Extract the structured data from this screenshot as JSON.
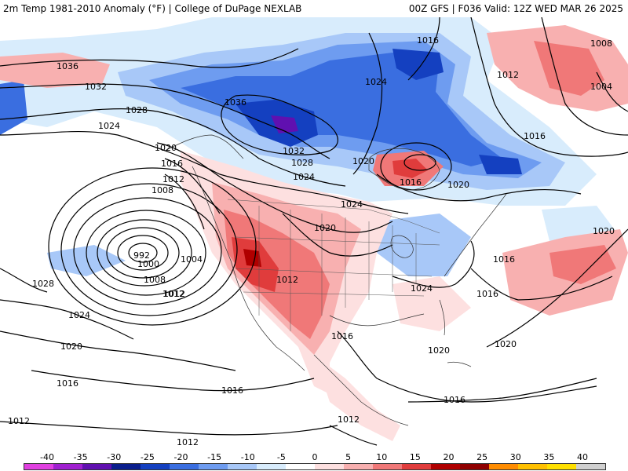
{
  "header": {
    "left_title": "2m Temp 1981-2010 Anomaly (°F) | College of DuPage NEXLAB",
    "right_title": "00Z GFS | F036 Valid: 12Z WED MAR 26 2025"
  },
  "legend": {
    "ticks": [
      "-40",
      "-35",
      "-30",
      "-25",
      "-20",
      "-15",
      "-10",
      "-5",
      "0",
      "5",
      "10",
      "15",
      "20",
      "25",
      "30",
      "35",
      "40"
    ],
    "colors": [
      "#e040e0",
      "#a020d0",
      "#6010b0",
      "#0a1e8c",
      "#1440c0",
      "#3a6ee0",
      "#6e9cf0",
      "#a8c8f8",
      "#d8ecfc",
      "#ffffff",
      "#fde0e0",
      "#f8b0b0",
      "#f07878",
      "#e03c3c",
      "#b00000",
      "#900000",
      "#ff8c00",
      "#ffc000",
      "#ffe000",
      "#d0d0d0"
    ]
  },
  "isobars": [
    "1036",
    "1032",
    "1028",
    "1024",
    "1020",
    "1016",
    "1012",
    "1008",
    "1004",
    "1000",
    "992",
    "1036",
    "1032",
    "1028",
    "1024",
    "1016",
    "1020",
    "1024",
    "1016",
    "1024",
    "1020",
    "1012",
    "1008",
    "1004",
    "1016",
    "1020",
    "1016",
    "1024",
    "1020",
    "1016",
    "1020",
    "1016",
    "1012",
    "1012",
    "1028",
    "1024",
    "1020",
    "1016",
    "1016",
    "1012",
    "1012",
    "1016",
    "1012",
    "1008",
    "1012",
    "1020"
  ],
  "colors": {
    "cold_deep": "#0a1e8c",
    "cold_mid": "#3a6ee0",
    "cold_light": "#a8c8f8",
    "cold_faint": "#d8ecfc",
    "warm_faint": "#fde0e0",
    "warm_light": "#f8b0b0",
    "warm_mid": "#f07878",
    "warm_strong": "#e03c3c",
    "warm_extreme": "#b00000",
    "purple": "#a020d0"
  }
}
